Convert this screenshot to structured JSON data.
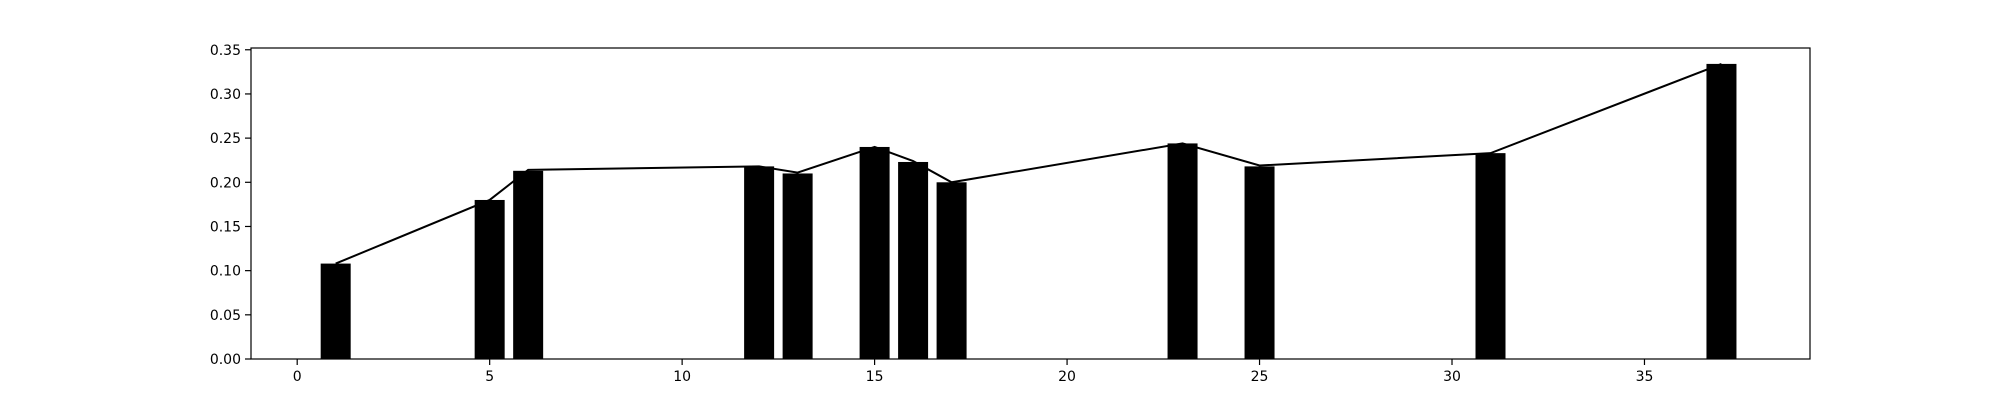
{
  "chart_data": {
    "type": "bar",
    "x": [
      1,
      5,
      6,
      12,
      13,
      15,
      16,
      17,
      23,
      25,
      31,
      37
    ],
    "values": [
      0.108,
      0.18,
      0.213,
      0.218,
      0.21,
      0.24,
      0.223,
      0.2,
      0.244,
      0.218,
      0.233,
      0.334
    ],
    "line_values": [
      0.108,
      0.18,
      0.214,
      0.218,
      0.211,
      0.24,
      0.224,
      0.2,
      0.244,
      0.219,
      0.233,
      0.334
    ],
    "xlim": [
      -1.2,
      39.3
    ],
    "ylim": [
      0,
      0.352
    ],
    "xticks": [
      0,
      5,
      10,
      15,
      20,
      25,
      30,
      35
    ],
    "yticks": [
      0.0,
      0.05,
      0.1,
      0.15,
      0.2,
      0.25,
      0.3,
      0.35
    ],
    "xtick_labels": [
      "0",
      "5",
      "10",
      "15",
      "20",
      "25",
      "30",
      "35"
    ],
    "ytick_labels": [
      "0.00",
      "0.05",
      "0.10",
      "0.15",
      "0.20",
      "0.25",
      "0.30",
      "0.35"
    ],
    "title": "",
    "xlabel": "",
    "ylabel": "",
    "grid": false,
    "bar_color": "#000000",
    "line_color": "#000000"
  }
}
